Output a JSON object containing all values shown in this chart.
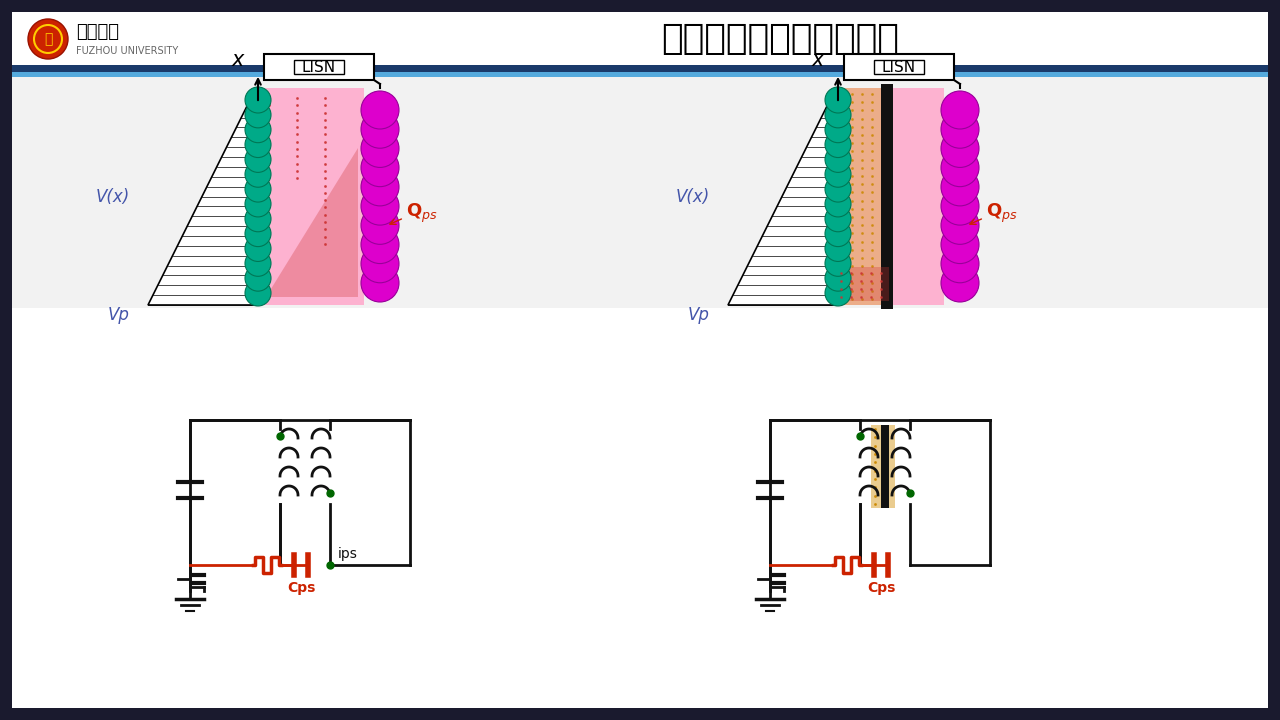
{
  "title": "原、副边绕组间共模噪声",
  "bg_color": "#1a1a2e",
  "panel_bg": "#f2f2f2",
  "teal_color": "#00aa88",
  "magenta_color": "#dd00cc",
  "pink_fill": "#ffaacc",
  "red_dot_color": "#cc3333",
  "gold_fill": "#ddaa44",
  "blue_text": "#4455aa",
  "red_text": "#cc2200",
  "lc": "#111111",
  "rc": "#cc2200",
  "univ_name_cn": "福州大学",
  "univ_name_en": "FUZHOU UNIVERSITY",
  "vx_label": "V(x)",
  "vp_label": "Vp",
  "x_label": "x",
  "qps_label": "Q",
  "qps_sub": "ps",
  "cps_label": "Cps",
  "ips_label": "ips",
  "lisn_label": "LISN",
  "n_teal": 14,
  "n_mag": 10
}
